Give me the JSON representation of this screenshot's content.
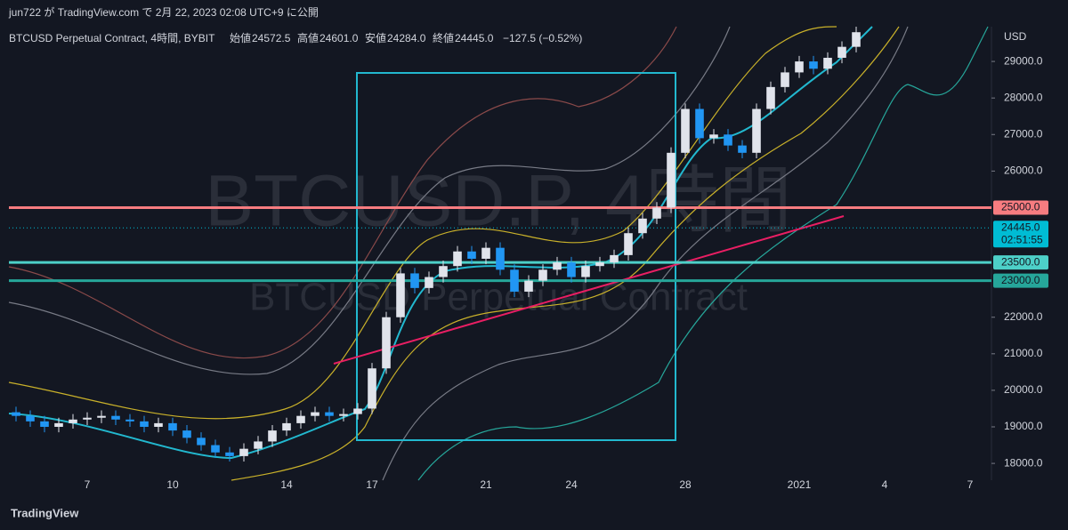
{
  "header": {
    "publisher": "jun722 が TradingView.com で 2月 22, 2023 02:08 UTC+9 に公開"
  },
  "legend": {
    "symbol": "BTCUSD Perpetual Contract, 4時間, BYBIT",
    "open_label": "始値",
    "open": "24572.5",
    "high_label": "高値",
    "high": "24601.0",
    "low_label": "安値",
    "low": "24284.0",
    "close_label": "終値",
    "close": "24445.0",
    "change": "−127.5 (−0.52%)"
  },
  "watermark": {
    "line1": "BTCUSD.P, 4時間",
    "line2": "BTCUSD Perpetual Contract"
  },
  "footer": {
    "brand": "TradingView"
  },
  "chart_data": {
    "type": "candlestick",
    "currency": "USD",
    "categories": [
      null,
      null,
      null,
      null,
      null,
      "7",
      null,
      null,
      null,
      null,
      null,
      "10",
      null,
      null,
      null,
      null,
      null,
      null,
      null,
      "14",
      null,
      null,
      null,
      null,
      null,
      "17",
      null,
      null,
      null,
      null,
      null,
      null,
      null,
      "21",
      null,
      null,
      null,
      null,
      null,
      "24",
      null,
      null,
      null,
      null,
      null,
      null,
      null,
      "28",
      null,
      null,
      null,
      null,
      null,
      null,
      null,
      "2021",
      null,
      null,
      null,
      null,
      null,
      "4",
      null,
      null,
      null,
      null,
      null,
      "7",
      null
    ],
    "open": [
      19400,
      19300,
      19150,
      19000,
      19100,
      19200,
      19250,
      19300,
      19200,
      19150,
      19000,
      19100,
      18900,
      18700,
      18500,
      18300,
      18200,
      18400,
      18600,
      18900,
      19100,
      19300,
      19400,
      19300,
      19350,
      19500,
      20600,
      22000,
      23200,
      22800,
      23100,
      23400,
      23800,
      23600,
      23900,
      23300,
      22700,
      23000,
      23300,
      23500,
      23100,
      23400,
      23500,
      23700,
      24300,
      24700,
      25000,
      26500,
      27700,
      26900,
      27000,
      26700,
      26500,
      27700,
      28300,
      28700,
      29000,
      28800,
      29100,
      29400,
      null,
      null,
      null,
      null,
      null,
      null,
      null,
      null,
      null
    ],
    "high": [
      19550,
      19450,
      19300,
      19250,
      19350,
      19400,
      19450,
      19450,
      19350,
      19300,
      19250,
      19250,
      19050,
      18850,
      18650,
      18450,
      18550,
      18750,
      19050,
      19250,
      19450,
      19550,
      19550,
      19500,
      19650,
      20750,
      22150,
      23350,
      23350,
      23250,
      23550,
      23950,
      23950,
      24050,
      24050,
      23450,
      23150,
      23450,
      23650,
      23650,
      23550,
      23650,
      23850,
      24450,
      24850,
      25150,
      26650,
      27850,
      27850,
      27150,
      27150,
      26850,
      27850,
      28450,
      28850,
      29150,
      29150,
      29250,
      29550,
      29950,
      null,
      null,
      null,
      null,
      null,
      null,
      null,
      null,
      null
    ],
    "low": [
      19150,
      19000,
      18850,
      18850,
      18950,
      19050,
      19100,
      19050,
      19000,
      18850,
      18850,
      18750,
      18550,
      18350,
      18150,
      18050,
      18050,
      18250,
      18450,
      18750,
      18950,
      19150,
      19150,
      19150,
      19200,
      19350,
      20450,
      21850,
      22650,
      22650,
      22950,
      23250,
      23450,
      23450,
      23150,
      22550,
      22550,
      22850,
      23150,
      22950,
      22950,
      23250,
      23350,
      23550,
      24150,
      24550,
      24850,
      26350,
      26750,
      26750,
      26550,
      26350,
      26350,
      27550,
      28150,
      28550,
      28650,
      28650,
      28950,
      29250,
      null,
      null,
      null,
      null,
      null,
      null,
      null,
      null,
      null
    ],
    "close": [
      19300,
      19150,
      19000,
      19100,
      19200,
      19250,
      19300,
      19200,
      19150,
      19000,
      19100,
      18900,
      18700,
      18500,
      18300,
      18200,
      18400,
      18600,
      18900,
      19100,
      19300,
      19400,
      19300,
      19350,
      19500,
      20600,
      22000,
      23200,
      22800,
      23100,
      23400,
      23800,
      23600,
      23900,
      23300,
      22700,
      23000,
      23300,
      23500,
      23100,
      23400,
      23500,
      23700,
      24300,
      24700,
      25000,
      26500,
      27700,
      26900,
      27000,
      26700,
      26500,
      27700,
      28300,
      28700,
      29000,
      28800,
      29100,
      29400,
      29800,
      null,
      null,
      null,
      null,
      null,
      null,
      null,
      null,
      null
    ],
    "up_color": "#e0e3eb",
    "down_color": "#2196f3",
    "ylim": [
      17540,
      30000
    ],
    "yticks": [
      {
        "value": 18000,
        "label": "18000.0"
      },
      {
        "value": 19000,
        "label": "19000.0"
      },
      {
        "value": 20000,
        "label": "20000.0"
      },
      {
        "value": 21000,
        "label": "21000.0"
      },
      {
        "value": 22000,
        "label": "22000.0"
      },
      {
        "value": 26000,
        "label": "26000.0"
      },
      {
        "value": 27000,
        "label": "27000.0"
      },
      {
        "value": 28000,
        "label": "28000.0"
      },
      {
        "value": 29000,
        "label": "29000.0"
      }
    ],
    "levels": [
      {
        "value": 25000,
        "label": "25000.0",
        "color": "#f77c80"
      },
      {
        "value": 23500,
        "label": "23500.0",
        "color": "#4dd0c8"
      },
      {
        "value": 23000,
        "label": "23000.0",
        "color": "#26a69a"
      }
    ],
    "last_price": {
      "value": 24445,
      "label": "24445.0",
      "countdown": "02:51:55",
      "color": "#00bcd4"
    }
  }
}
